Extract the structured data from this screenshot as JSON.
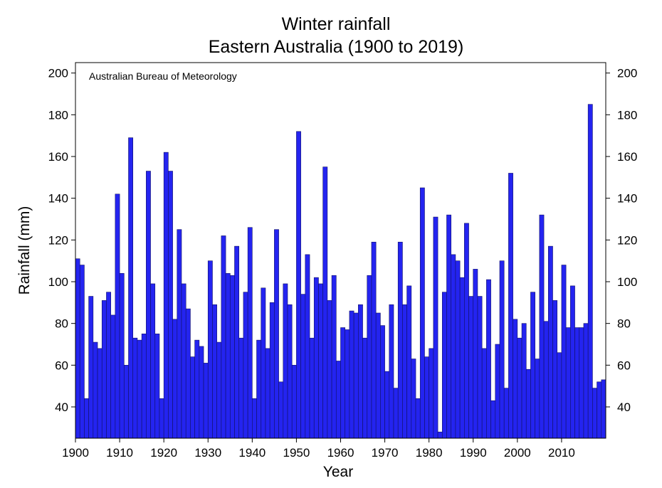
{
  "chart_data": {
    "type": "bar",
    "title": "Winter rainfall",
    "subtitle": "Eastern Australia (1900 to 2019)",
    "source": "Australian Bureau of Meteorology",
    "xlabel": "Year",
    "ylabel": "Rainfall (mm)",
    "xlim": [
      1900,
      2019
    ],
    "ylim": [
      25,
      205
    ],
    "x_ticks": [
      1900,
      1910,
      1920,
      1930,
      1940,
      1950,
      1960,
      1970,
      1980,
      1990,
      2000,
      2010
    ],
    "y_ticks": [
      40,
      60,
      80,
      100,
      120,
      140,
      160,
      180,
      200
    ],
    "bar_color": "#2424f0",
    "grid": false,
    "categories": [
      1900,
      1901,
      1902,
      1903,
      1904,
      1905,
      1906,
      1907,
      1908,
      1909,
      1910,
      1911,
      1912,
      1913,
      1914,
      1915,
      1916,
      1917,
      1918,
      1919,
      1920,
      1921,
      1922,
      1923,
      1924,
      1925,
      1926,
      1927,
      1928,
      1929,
      1930,
      1931,
      1932,
      1933,
      1934,
      1935,
      1936,
      1937,
      1938,
      1939,
      1940,
      1941,
      1942,
      1943,
      1944,
      1945,
      1946,
      1947,
      1948,
      1949,
      1950,
      1951,
      1952,
      1953,
      1954,
      1955,
      1956,
      1957,
      1958,
      1959,
      1960,
      1961,
      1962,
      1963,
      1964,
      1965,
      1966,
      1967,
      1968,
      1969,
      1970,
      1971,
      1972,
      1973,
      1974,
      1975,
      1976,
      1977,
      1978,
      1979,
      1980,
      1981,
      1982,
      1983,
      1984,
      1985,
      1986,
      1987,
      1988,
      1989,
      1990,
      1991,
      1992,
      1993,
      1994,
      1995,
      1996,
      1997,
      1998,
      1999,
      2000,
      2001,
      2002,
      2003,
      2004,
      2005,
      2006,
      2007,
      2008,
      2009,
      2010,
      2011,
      2012,
      2013,
      2014,
      2015,
      2016,
      2017,
      2018,
      2019
    ],
    "values": [
      111,
      108,
      44,
      93,
      71,
      68,
      91,
      95,
      84,
      142,
      104,
      60,
      169,
      73,
      72,
      75,
      153,
      99,
      75,
      44,
      162,
      153,
      82,
      125,
      99,
      87,
      64,
      72,
      69,
      61,
      110,
      89,
      71,
      122,
      104,
      103,
      117,
      73,
      95,
      126,
      44,
      72,
      97,
      68,
      90,
      125,
      52,
      99,
      89,
      60,
      172,
      94,
      113,
      73,
      102,
      99,
      155,
      91,
      103,
      62,
      78,
      77,
      86,
      85,
      89,
      73,
      103,
      119,
      85,
      79,
      57,
      89,
      49,
      119,
      89,
      98,
      63,
      44,
      145,
      64,
      68,
      131,
      28,
      95,
      132,
      113,
      110,
      102,
      128,
      93,
      106,
      93,
      68,
      101,
      43,
      70,
      110,
      49,
      152,
      82,
      73,
      80,
      58,
      95,
      63,
      132,
      81,
      117,
      91,
      66,
      108,
      78,
      98,
      78,
      78,
      80,
      185,
      49,
      52,
      53
    ]
  }
}
